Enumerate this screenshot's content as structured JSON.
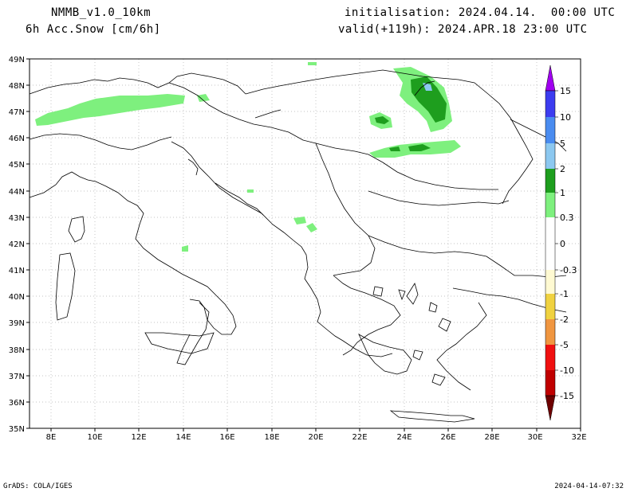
{
  "header": {
    "model": "NMMB_v1.0_10km",
    "variable": "6h Acc.Snow [cm/6h]",
    "init": "initialisation: 2024.04.14.  00:00 UTC",
    "valid": "valid(+119h): 2024.APR.18 23:00 UTC"
  },
  "footer": {
    "credit": "GrADS: COLA/IGES",
    "timestamp": "2024-04-14-07:32"
  },
  "map": {
    "lon_labels": [
      "8E",
      "10E",
      "12E",
      "14E",
      "16E",
      "18E",
      "20E",
      "22E",
      "24E",
      "26E",
      "28E",
      "30E",
      "32E"
    ],
    "lat_labels": [
      "49N",
      "48N",
      "47N",
      "46N",
      "45N",
      "44N",
      "43N",
      "42N",
      "41N",
      "40N",
      "39N",
      "38N",
      "37N",
      "36N",
      "35N"
    ]
  },
  "colorbar": {
    "levels": [
      "15",
      "10",
      "5",
      "2",
      "1",
      "0.3",
      "0",
      "-0.3",
      "-1",
      "-2",
      "-5",
      "-10",
      "-15"
    ],
    "colors": {
      "top_triangle": "#a000f0",
      "c15": "#3c3cf0",
      "c10": "#4a8cf0",
      "c5": "#8cc8f0",
      "c2": "#1e9e1e",
      "c1": "#7ef07e",
      "c03": "#ffffff",
      "cn03": "#fffad2",
      "cn1": "#f0d240",
      "cn2": "#f09640",
      "cn5": "#f01010",
      "cn10": "#c00000",
      "bottom_triangle": "#6e0000"
    }
  }
}
